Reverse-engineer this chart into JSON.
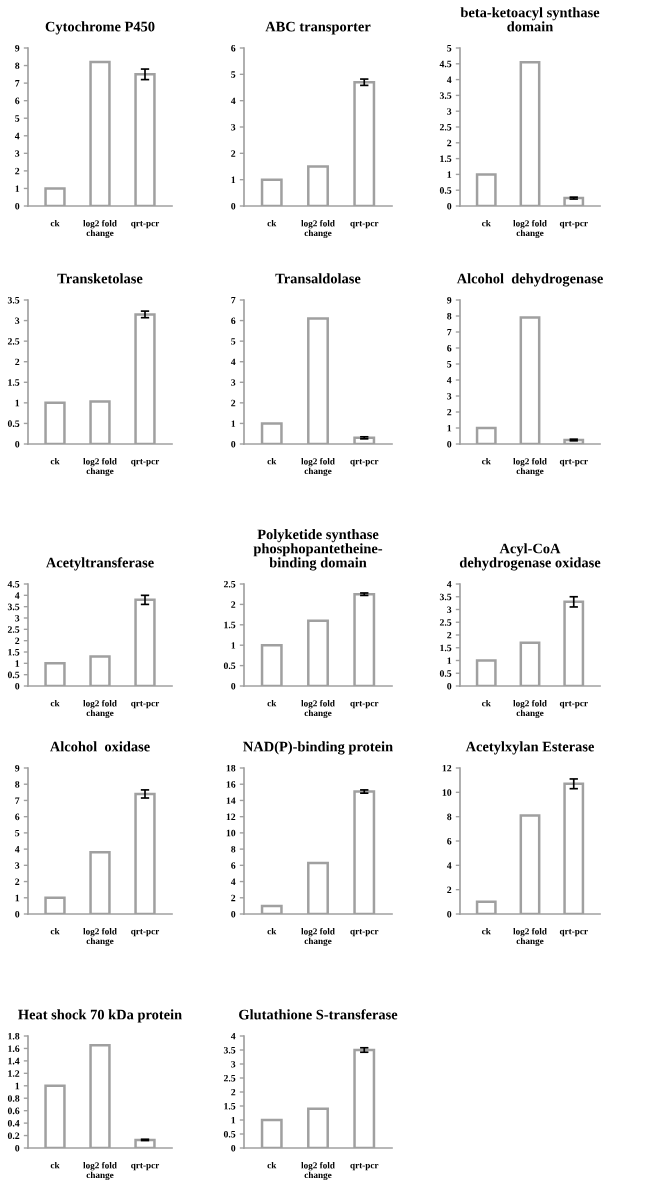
{
  "chart_data": [
    {
      "type": "bar",
      "title": "Cytochrome P450",
      "categories": [
        "ck",
        "log2 fold\nchange",
        "qrt-pcr"
      ],
      "values": [
        1,
        8.2,
        7.5
      ],
      "errors": [
        null,
        null,
        0.3
      ],
      "color": "#ffffff",
      "ylim": [
        0,
        9
      ],
      "yticks": [
        0,
        1,
        2,
        3,
        4,
        5,
        6,
        7,
        8,
        9
      ],
      "grid": false
    },
    {
      "type": "bar",
      "title": "ABC transporter",
      "categories": [
        "ck",
        "log2 fold\nchange",
        "qrt-pcr"
      ],
      "values": [
        1,
        1.5,
        4.7
      ],
      "errors": [
        null,
        null,
        0.12
      ],
      "color": "#ffffff",
      "ylim": [
        0,
        6
      ],
      "yticks": [
        0,
        1,
        2,
        3,
        4,
        5,
        6
      ],
      "grid": false
    },
    {
      "type": "bar",
      "title": "beta-ketoacyl synthase\ndomain",
      "categories": [
        "ck",
        "log2 fold\nchange",
        "qrt-pcr"
      ],
      "values": [
        1,
        4.55,
        0.25
      ],
      "errors": [
        null,
        null,
        0.03
      ],
      "color": "#ffffff",
      "ylim": [
        0,
        5
      ],
      "yticks": [
        0,
        0.5,
        1,
        1.5,
        2,
        2.5,
        3,
        3.5,
        4,
        4.5,
        5
      ],
      "grid": false
    },
    {
      "type": "bar",
      "title": "Transketolase",
      "categories": [
        "ck",
        "log2 fold\nchange",
        "qrt-pcr"
      ],
      "values": [
        1,
        1.03,
        3.15
      ],
      "errors": [
        null,
        null,
        0.08
      ],
      "color": "#ffffff",
      "ylim": [
        0,
        3.5
      ],
      "yticks": [
        0,
        0.5,
        1,
        1.5,
        2,
        2.5,
        3,
        3.5
      ],
      "grid": false
    },
    {
      "type": "bar",
      "title": "Transaldolase",
      "categories": [
        "ck",
        "log2 fold\nchange",
        "qrt-pcr"
      ],
      "values": [
        1,
        6.1,
        0.3
      ],
      "errors": [
        null,
        null,
        0.05
      ],
      "color": "#ffffff",
      "ylim": [
        0,
        7
      ],
      "yticks": [
        0,
        1,
        2,
        3,
        4,
        5,
        6,
        7
      ],
      "grid": false
    },
    {
      "type": "bar",
      "title": "Alcohol  dehydrogenase",
      "categories": [
        "ck",
        "log2 fold\nchange",
        "qrt-pcr"
      ],
      "values": [
        1,
        7.9,
        0.25
      ],
      "errors": [
        null,
        null,
        0.05
      ],
      "color": "#ffffff",
      "ylim": [
        0,
        9
      ],
      "yticks": [
        0,
        1,
        2,
        3,
        4,
        5,
        6,
        7,
        8,
        9
      ],
      "grid": false
    },
    {
      "type": "bar",
      "title": "Acetyltransferase",
      "categories": [
        "ck",
        "log2 fold\nchange",
        "qrt-pcr"
      ],
      "values": [
        1,
        1.3,
        3.8
      ],
      "errors": [
        null,
        null,
        0.2
      ],
      "color": "#ffffff",
      "ylim": [
        0,
        4.5
      ],
      "yticks": [
        0,
        0.5,
        1,
        1.5,
        2,
        2.5,
        3,
        3.5,
        4,
        4.5
      ],
      "grid": false
    },
    {
      "type": "bar",
      "title": "Polyketide synthase\nphosphopantetheine-\nbinding domain",
      "categories": [
        "ck",
        "log2 fold\nchange",
        "qrt-pcr"
      ],
      "values": [
        1,
        1.6,
        2.25
      ],
      "errors": [
        null,
        null,
        0.03
      ],
      "color": "#ffffff",
      "ylim": [
        0,
        2.5
      ],
      "yticks": [
        0,
        0.5,
        1,
        1.5,
        2,
        2.5
      ],
      "grid": false
    },
    {
      "type": "bar",
      "title": "Acyl-CoA\ndehydrogenase oxidase",
      "categories": [
        "ck",
        "log2 fold\nchange",
        "qrt-pcr"
      ],
      "values": [
        1,
        1.7,
        3.3
      ],
      "errors": [
        null,
        null,
        0.2
      ],
      "color": "#ffffff",
      "ylim": [
        0,
        4
      ],
      "yticks": [
        0,
        0.5,
        1,
        1.5,
        2,
        2.5,
        3,
        3.5,
        4
      ],
      "grid": false
    },
    {
      "type": "bar",
      "title": "Alcohol  oxidase",
      "categories": [
        "ck",
        "log2 fold\nchange",
        "qrt-pcr"
      ],
      "values": [
        1,
        3.8,
        7.4
      ],
      "errors": [
        null,
        null,
        0.25
      ],
      "color": "#ffffff",
      "ylim": [
        0,
        9
      ],
      "yticks": [
        0,
        1,
        2,
        3,
        4,
        5,
        6,
        7,
        8,
        9
      ],
      "grid": false
    },
    {
      "type": "bar",
      "title": "NAD(P)-binding protein",
      "categories": [
        "ck",
        "log2 fold\nchange",
        "qrt-pcr"
      ],
      "values": [
        1,
        6.3,
        15.1
      ],
      "errors": [
        null,
        null,
        0.2
      ],
      "color": "#ffffff",
      "ylim": [
        0,
        18
      ],
      "yticks": [
        0,
        2,
        4,
        6,
        8,
        10,
        12,
        14,
        16,
        18
      ],
      "grid": false
    },
    {
      "type": "bar",
      "title": "Acetylxylan Esterase",
      "categories": [
        "ck",
        "log2 fold\nchange",
        "qrt-pcr"
      ],
      "values": [
        1,
        8.1,
        10.7
      ],
      "errors": [
        null,
        null,
        0.4
      ],
      "color": "#ffffff",
      "ylim": [
        0,
        12
      ],
      "yticks": [
        0,
        2,
        4,
        6,
        8,
        10,
        12
      ],
      "grid": false
    },
    {
      "type": "bar",
      "title": "Heat shock 70 kDa protein",
      "categories": [
        "ck",
        "log2 fold\nchange",
        "qrt-pcr"
      ],
      "values": [
        1,
        1.65,
        0.13
      ],
      "errors": [
        null,
        null,
        0.01
      ],
      "color": "#ffffff",
      "ylim": [
        0,
        1.8
      ],
      "yticks": [
        0,
        0.2,
        0.4,
        0.6,
        0.8,
        1,
        1.2,
        1.4,
        1.6,
        1.8
      ],
      "grid": false
    },
    {
      "type": "bar",
      "title": "Glutathione S-transferase",
      "categories": [
        "ck",
        "log2 fold\nchange",
        "qrt-pcr"
      ],
      "values": [
        1,
        1.4,
        3.5
      ],
      "errors": [
        null,
        null,
        0.08
      ],
      "color": "#ffffff",
      "ylim": [
        0,
        4
      ],
      "yticks": [
        0,
        0.5,
        1,
        1.5,
        2,
        2.5,
        3,
        3.5,
        4
      ],
      "grid": false
    }
  ]
}
